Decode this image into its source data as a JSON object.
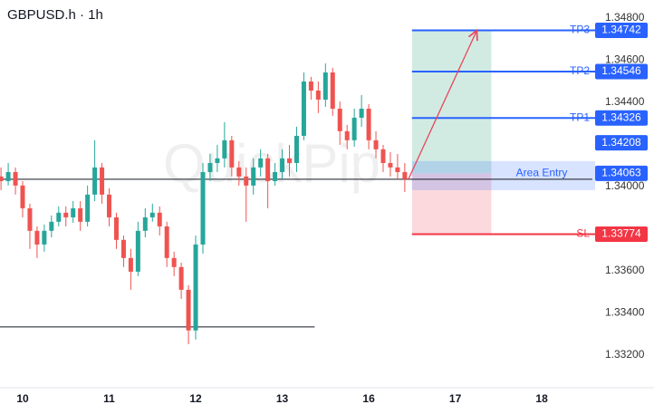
{
  "chart_data": {
    "type": "candlestick",
    "title": "GBPUSD.h · 1h",
    "watermark": "QuickPip",
    "x": [
      -6,
      -4,
      -2,
      0,
      2,
      4,
      6,
      8,
      10,
      12,
      14,
      16,
      18,
      20,
      22,
      24,
      26,
      28,
      30,
      32,
      34,
      36,
      38,
      40,
      42,
      44,
      46,
      48,
      50,
      52,
      54,
      56,
      58,
      60,
      62,
      64,
      66,
      68,
      70,
      72,
      74,
      76,
      78,
      80,
      82,
      84,
      86,
      88,
      90,
      92,
      94,
      96,
      98,
      100,
      102,
      104,
      106
    ],
    "open": [
      1.34048,
      1.34026,
      1.34069,
      1.34005,
      1.33897,
      1.3379,
      1.33725,
      1.3379,
      1.33833,
      1.33876,
      1.33854,
      1.33897,
      1.33833,
      1.33962,
      1.34091,
      1.33962,
      1.33854,
      1.33747,
      1.33661,
      1.33596,
      1.3379,
      1.33854,
      1.33876,
      1.33811,
      1.33661,
      1.33618,
      1.3351,
      1.33317,
      1.33725,
      1.34069,
      1.34112,
      1.34134,
      1.3422,
      1.34091,
      1.34048,
      1.34005,
      1.34091,
      1.34134,
      1.34026,
      1.34069,
      1.34134,
      1.34112,
      1.34241,
      1.34499,
      1.34456,
      1.34413,
      1.34542,
      1.3437,
      1.34263,
      1.3422,
      1.34327,
      1.3437,
      1.3422,
      1.34177,
      1.34112,
      1.34091,
      1.34069
    ],
    "high": [
      1.34091,
      1.34112,
      1.34091,
      1.34026,
      1.33919,
      1.33811,
      1.3382,
      1.33863,
      1.33906,
      1.33906,
      1.33931,
      1.33931,
      1.34005,
      1.3422,
      1.34112,
      1.33992,
      1.33876,
      1.33768,
      1.33704,
      1.33833,
      1.33897,
      1.33919,
      1.33906,
      1.33833,
      1.33691,
      1.33639,
      1.33532,
      1.33768,
      1.34112,
      1.34155,
      1.34198,
      1.34306,
      1.34241,
      1.34121,
      1.34091,
      1.34134,
      1.34177,
      1.34155,
      1.34112,
      1.34177,
      1.34198,
      1.34284,
      1.34542,
      1.34521,
      1.34499,
      1.34585,
      1.34564,
      1.34404,
      1.34293,
      1.3437,
      1.34435,
      1.34392,
      1.34263,
      1.34198,
      1.34164,
      1.34155,
      1.34112
    ],
    "low": [
      1.33983,
      1.34005,
      1.33962,
      1.33854,
      1.33704,
      1.33661,
      1.33691,
      1.33759,
      1.33811,
      1.33811,
      1.33828,
      1.3379,
      1.33811,
      1.33931,
      1.33919,
      1.33811,
      1.33704,
      1.33618,
      1.3351,
      1.33575,
      1.33759,
      1.33833,
      1.33768,
      1.33618,
      1.33575,
      1.33467,
      1.33252,
      1.33274,
      1.33682,
      1.34026,
      1.34069,
      1.34091,
      1.34048,
      1.34005,
      1.33833,
      1.33962,
      1.34048,
      1.33897,
      1.34005,
      1.34035,
      1.34048,
      1.34069,
      1.3422,
      1.34413,
      1.34349,
      1.34379,
      1.34336,
      1.34198,
      1.34177,
      1.34189,
      1.34284,
      1.34177,
      1.34134,
      1.34069,
      1.34048,
      1.34035,
      1.33974
    ],
    "close": [
      1.34026,
      1.34069,
      1.34005,
      1.33897,
      1.3379,
      1.33725,
      1.3379,
      1.33833,
      1.33876,
      1.33854,
      1.33897,
      1.33833,
      1.33962,
      1.34091,
      1.33962,
      1.33854,
      1.33747,
      1.33661,
      1.33596,
      1.3379,
      1.33854,
      1.33876,
      1.33811,
      1.33661,
      1.33618,
      1.3351,
      1.33317,
      1.33725,
      1.34069,
      1.34112,
      1.34134,
      1.3422,
      1.34091,
      1.34048,
      1.34005,
      1.34091,
      1.34134,
      1.34026,
      1.34069,
      1.34134,
      1.34112,
      1.34241,
      1.34499,
      1.34456,
      1.34413,
      1.34542,
      1.3437,
      1.34263,
      1.3422,
      1.34327,
      1.3437,
      1.3422,
      1.34177,
      1.34112,
      1.34091,
      1.34069,
      1.34035
    ],
    "up_color": "#26a69a",
    "down_color": "#ef5350",
    "xlim": [
      -6.28,
      159.55
    ],
    "ylim": [
      1.33045,
      1.34886
    ],
    "xticks": [
      {
        "value": 0,
        "label": "10"
      },
      {
        "value": 24,
        "label": "11"
      },
      {
        "value": 48,
        "label": "12"
      },
      {
        "value": 72,
        "label": "13"
      },
      {
        "value": 96,
        "label": "16"
      },
      {
        "value": 120,
        "label": "17"
      },
      {
        "value": 144,
        "label": "18"
      }
    ],
    "yticks": [
      {
        "value": 1.348,
        "label": "1.34800"
      },
      {
        "value": 1.346,
        "label": "1.34600"
      },
      {
        "value": 1.344,
        "label": "1.34400"
      },
      {
        "value": 1.34,
        "label": "1.34000"
      },
      {
        "value": 1.336,
        "label": "1.33600"
      },
      {
        "value": 1.334,
        "label": "1.33400"
      },
      {
        "value": 1.332,
        "label": "1.33200"
      }
    ],
    "lines": [
      {
        "price": 1.34035,
        "x_end": 158
      },
      {
        "price": 1.33334,
        "x_end": 81
      }
    ],
    "trade": {
      "x_start": 108,
      "x_end": 130,
      "entry_label": "Area Entry",
      "entry_price": 1.34063,
      "entry_low": 1.33983,
      "entry_high": 1.34121,
      "targets": [
        {
          "name": "TP3",
          "price": 1.34742
        },
        {
          "name": "TP2",
          "price": 1.34546
        },
        {
          "name": "TP1",
          "price": 1.34326
        }
      ],
      "stop": {
        "name": "SL",
        "price": 1.33774
      },
      "arrow": {
        "x": [
          107,
          126
        ],
        "y": [
          1.34035,
          1.34742
        ]
      },
      "current_price": 1.34208
    }
  }
}
